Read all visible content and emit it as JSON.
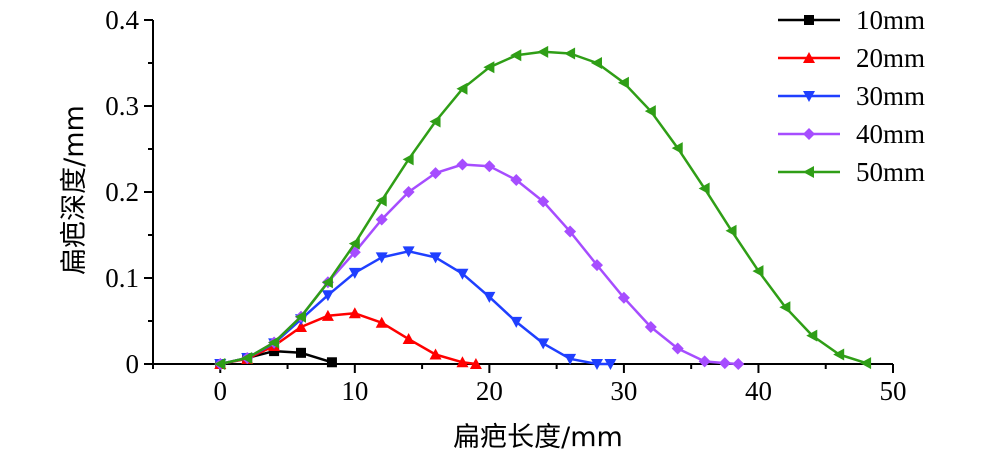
{
  "chart_data": {
    "type": "line",
    "title": "",
    "xlabel": "扁疤长度/mm",
    "ylabel": "扁疤深度/mm",
    "xlim": [
      -5,
      50
    ],
    "ylim": [
      0,
      0.4
    ],
    "xticks": [
      0,
      10,
      20,
      30,
      40,
      50
    ],
    "xtick_labels": [
      "0",
      "10",
      "20",
      "30",
      "40",
      "50"
    ],
    "yticks": [
      0,
      0.1,
      0.2,
      0.3,
      0.4
    ],
    "ytick_labels": [
      "0",
      "0.1",
      "0.2",
      "0.3",
      "0.4"
    ],
    "grid": false,
    "legend_position": "top-right",
    "series": [
      {
        "name": "10mm",
        "color": "#000000",
        "marker": "square",
        "x": [
          0,
          2,
          4,
          6,
          8.3
        ],
        "y": [
          0,
          0.007,
          0.015,
          0.013,
          0.002
        ]
      },
      {
        "name": "20mm",
        "color": "#ff0000",
        "marker": "triangle-up",
        "x": [
          0,
          2,
          4,
          6,
          8,
          10,
          12,
          14,
          16,
          18,
          19
        ],
        "y": [
          0,
          0.006,
          0.021,
          0.043,
          0.056,
          0.059,
          0.048,
          0.029,
          0.011,
          0.002,
          0
        ]
      },
      {
        "name": "30mm",
        "color": "#1f3fff",
        "marker": "triangle-down",
        "x": [
          0,
          2,
          4,
          6,
          8,
          10,
          12,
          14,
          16,
          18,
          20,
          22,
          24,
          26,
          28,
          29
        ],
        "y": [
          0,
          0.007,
          0.024,
          0.052,
          0.08,
          0.106,
          0.124,
          0.131,
          0.124,
          0.105,
          0.078,
          0.049,
          0.024,
          0.006,
          0,
          0
        ]
      },
      {
        "name": "40mm",
        "color": "#a64dff",
        "marker": "diamond",
        "x": [
          0,
          2,
          4,
          6,
          8,
          10,
          12,
          14,
          16,
          18,
          20,
          22,
          24,
          26,
          28,
          30,
          32,
          34,
          36,
          37.5,
          38.5
        ],
        "y": [
          0,
          0.007,
          0.025,
          0.055,
          0.095,
          0.13,
          0.168,
          0.2,
          0.222,
          0.232,
          0.23,
          0.214,
          0.189,
          0.154,
          0.115,
          0.077,
          0.043,
          0.018,
          0.003,
          0.001,
          0
        ]
      },
      {
        "name": "50mm",
        "color": "#2f9e16",
        "marker": "triangle-left",
        "x": [
          0,
          2,
          4,
          6,
          8,
          10,
          12,
          14,
          16,
          18,
          20,
          22,
          24,
          26,
          28,
          30,
          32,
          34,
          36,
          38,
          40,
          42,
          44,
          46,
          48
        ],
        "y": [
          0,
          0.007,
          0.025,
          0.055,
          0.095,
          0.14,
          0.19,
          0.238,
          0.282,
          0.32,
          0.345,
          0.359,
          0.363,
          0.361,
          0.35,
          0.327,
          0.294,
          0.251,
          0.204,
          0.155,
          0.108,
          0.066,
          0.033,
          0.011,
          0.001
        ]
      }
    ]
  }
}
